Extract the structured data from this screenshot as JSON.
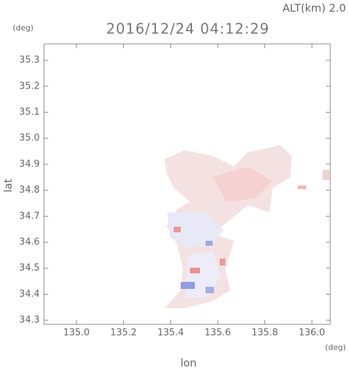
{
  "chart_data": {
    "type": "map",
    "title": "2016/12/24 04:12:29",
    "altitude_label": "ALT(km)  2.0",
    "y_unit": "(deg)",
    "x_unit": "(deg)",
    "xlabel": "lon",
    "ylabel": "lat",
    "xlim": [
      134.862,
      136.078
    ],
    "ylim": [
      34.284,
      35.363
    ],
    "xticks": [
      {
        "value": 135,
        "label": "135.0"
      },
      135.2,
      135.4,
      135.6,
      135.8,
      {
        "value": 136,
        "label": "136.0"
      }
    ],
    "yticks": [
      34.3,
      34.4,
      34.5,
      34.6,
      34.7,
      34.8,
      34.9,
      {
        "value": 35,
        "label": "35.0"
      },
      35.1,
      35.2,
      35.3
    ]
  }
}
